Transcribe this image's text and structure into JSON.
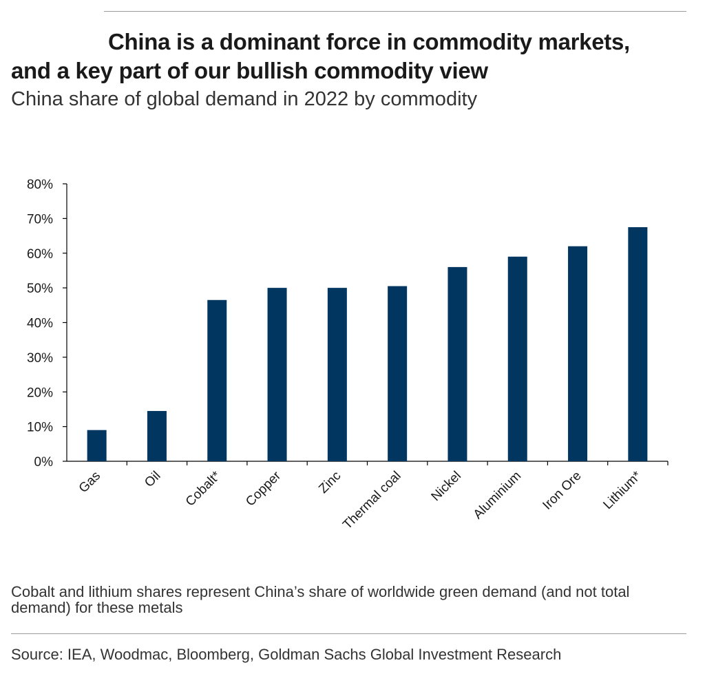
{
  "header": {
    "title": "China is a dominant force in commodity markets, and a key part of our bullish commodity view",
    "subtitle": "China share of global demand in 2022 by commodity"
  },
  "chart_data": {
    "type": "bar",
    "title": "China is a dominant force in commodity markets, and a key part of our bullish commodity view",
    "subtitle": "China share of global demand in 2022 by commodity",
    "xlabel": "",
    "ylabel": "",
    "categories": [
      "Gas",
      "Oil",
      "Cobalt*",
      "Copper",
      "Zinc",
      "Thermal coal",
      "Nickel",
      "Aluminium",
      "Iron Ore",
      "Lithium*"
    ],
    "values": [
      9,
      14.5,
      46.5,
      50,
      50,
      50.5,
      56,
      59,
      62,
      67.5
    ],
    "ylim": [
      0,
      80
    ],
    "yticks": [
      0,
      10,
      20,
      30,
      40,
      50,
      60,
      70,
      80
    ],
    "ytick_labels": [
      "0%",
      "10%",
      "20%",
      "30%",
      "40%",
      "50%",
      "60%",
      "70%",
      "80%"
    ],
    "unit": "%",
    "grid": false,
    "legend": "none",
    "bar_color": "#003660"
  },
  "footer": {
    "note": "Cobalt and lithium shares represent China’s share of worldwide green demand (and not total demand) for these metals",
    "source": "Source: IEA, Woodmac, Bloomberg, Goldman Sachs Global Investment Research"
  }
}
